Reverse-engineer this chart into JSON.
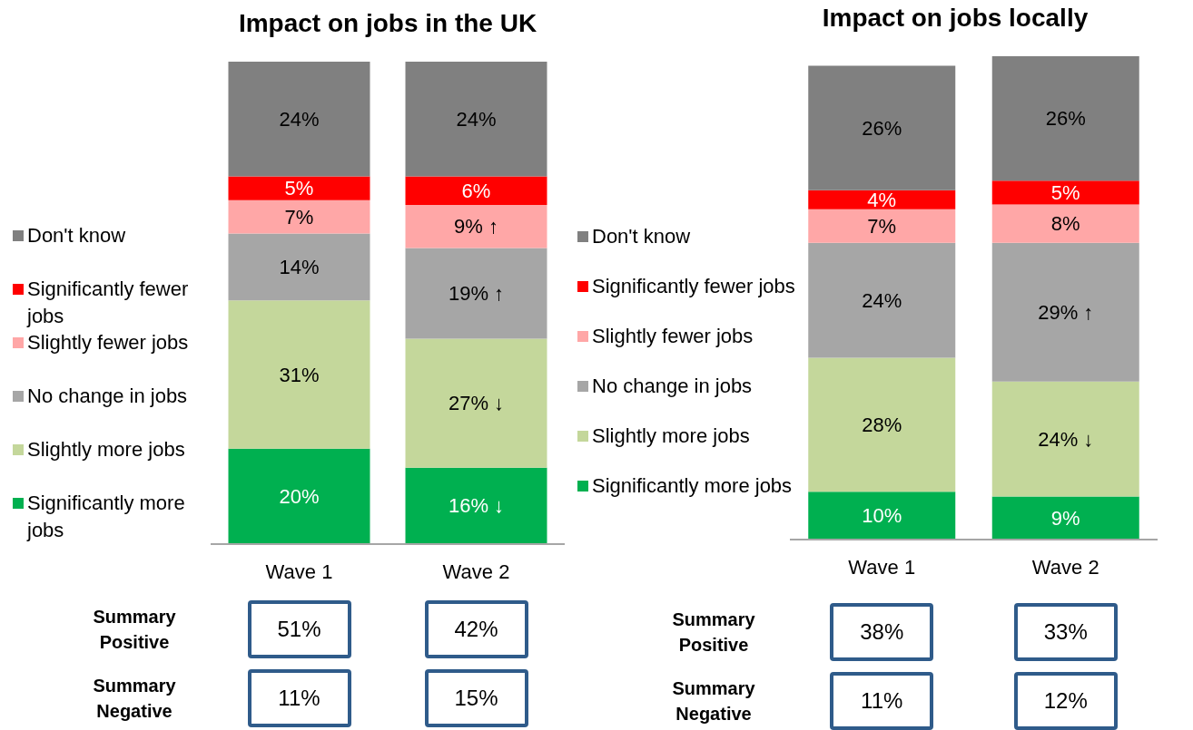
{
  "chart_data": [
    {
      "type": "bar",
      "title": "Impact on jobs in the UK",
      "stacked": true,
      "legend": "left",
      "categories": [
        "Wave 1",
        "Wave 2"
      ],
      "series": [
        {
          "name": "Significantly more jobs",
          "color": "#00b050",
          "values": [
            20,
            16
          ],
          "value_labels": [
            "20%",
            "16% ↓"
          ]
        },
        {
          "name": "Slightly more jobs",
          "color": "#c4d79b",
          "values": [
            31,
            27
          ],
          "value_labels": [
            "31%",
            "27% ↓"
          ]
        },
        {
          "name": "No change in jobs",
          "color": "#a6a6a6",
          "values": [
            14,
            19
          ],
          "value_labels": [
            "14%",
            "19% ↑"
          ]
        },
        {
          "name": "Slightly fewer jobs",
          "color": "#ffa7a7",
          "values": [
            7,
            9
          ],
          "value_labels": [
            "7%",
            "9% ↑"
          ]
        },
        {
          "name": "Significantly fewer jobs",
          "color": "#ff0000",
          "values": [
            5,
            6
          ],
          "value_labels": [
            "5%",
            "6%"
          ]
        },
        {
          "name": "Don't know",
          "color": "#808080",
          "values": [
            24,
            24
          ],
          "value_labels": [
            "24%",
            "24%"
          ]
        }
      ],
      "annotations": [
        "Summary Positive",
        "51%",
        "42%",
        "Summary Negative",
        "11%",
        "15%"
      ]
    },
    {
      "type": "bar",
      "title": "Impact on jobs locally",
      "stacked": true,
      "legend": "left",
      "categories": [
        "Wave 1",
        "Wave 2"
      ],
      "series": [
        {
          "name": "Significantly more jobs",
          "color": "#00b050",
          "values": [
            10,
            9
          ],
          "value_labels": [
            "10%",
            "9%"
          ]
        },
        {
          "name": "Slightly more jobs",
          "color": "#c4d79b",
          "values": [
            28,
            24
          ],
          "value_labels": [
            "28%",
            "24% ↓"
          ]
        },
        {
          "name": "No change in jobs",
          "color": "#a6a6a6",
          "values": [
            24,
            29
          ],
          "value_labels": [
            "24%",
            "29% ↑"
          ]
        },
        {
          "name": "Slightly fewer jobs",
          "color": "#ffa7a7",
          "values": [
            7,
            8
          ],
          "value_labels": [
            "7%",
            "8%"
          ]
        },
        {
          "name": "Significantly fewer jobs",
          "color": "#ff0000",
          "values": [
            4,
            5
          ],
          "value_labels": [
            "4%",
            "5%"
          ]
        },
        {
          "name": "Don't know",
          "color": "#808080",
          "values": [
            26,
            26
          ],
          "value_labels": [
            "26%",
            "26%"
          ]
        }
      ],
      "annotations": [
        "Summary Positive",
        "38%",
        "33%",
        "Summary Negative",
        "11%",
        "12%"
      ]
    }
  ]
}
